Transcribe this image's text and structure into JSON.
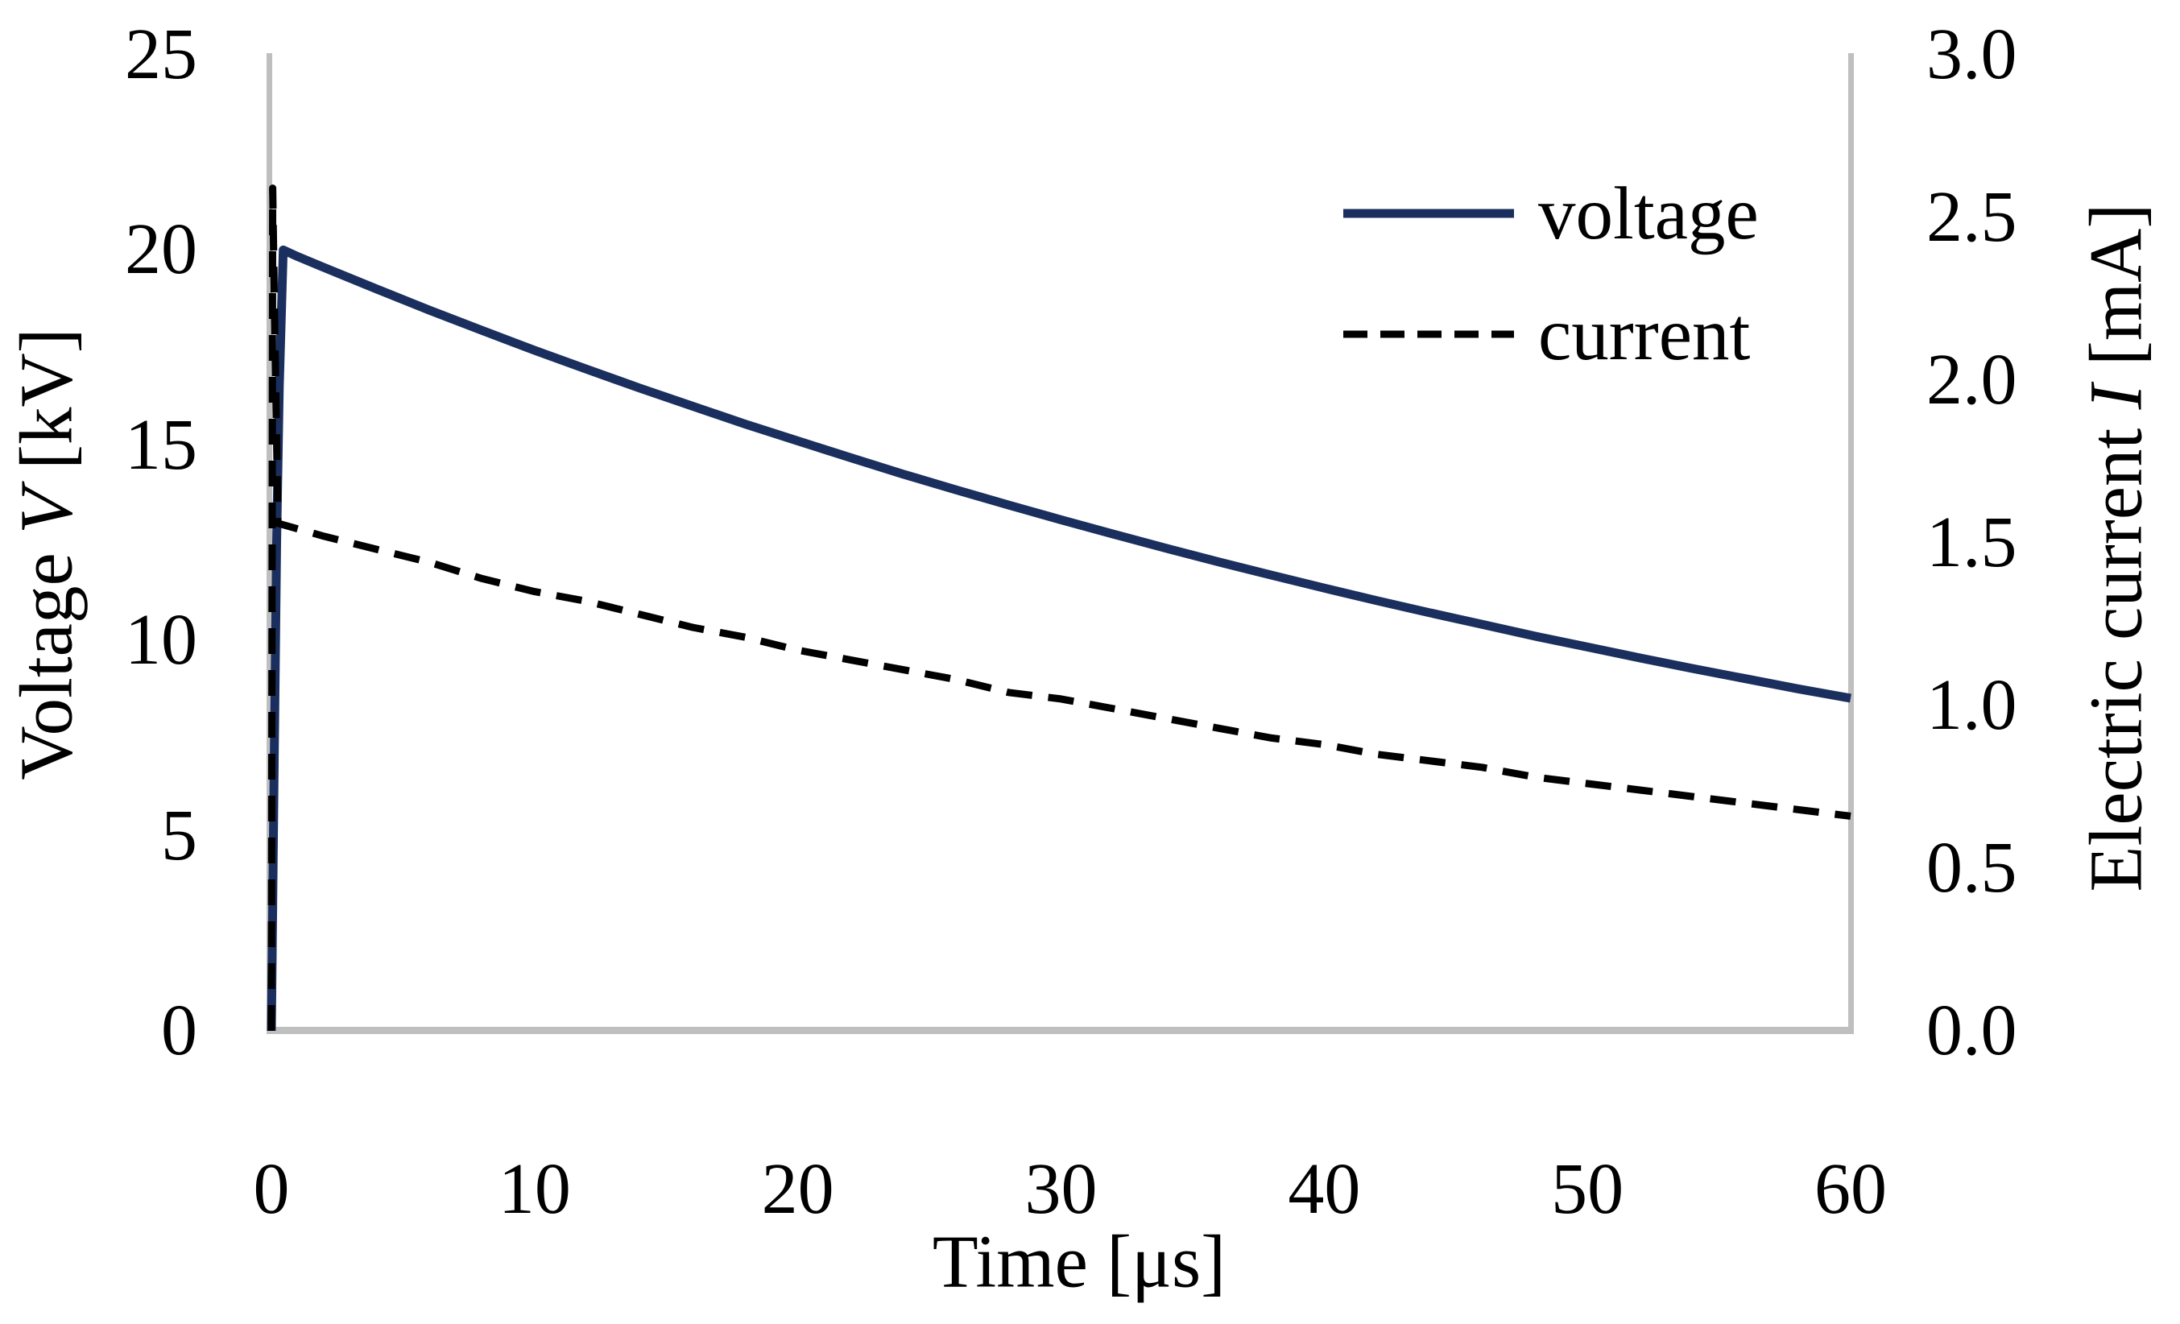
{
  "chart_data": {
    "type": "line",
    "title": "",
    "xlabel": "Time [μs]",
    "ylabel_left": {
      "pre": "Voltage ",
      "var": "V",
      "post": " [kV]"
    },
    "ylabel_right": {
      "pre": "Electric current ",
      "var": "I",
      "post": " [mA]"
    },
    "xlim": [
      0,
      60
    ],
    "ylim_left": [
      0,
      25
    ],
    "ylim_right": [
      0,
      3
    ],
    "x_tick_labels": [
      "0",
      "10",
      "20",
      "30",
      "40",
      "50",
      "60"
    ],
    "y_left_tick_labels": [
      "25",
      "20",
      "15",
      "10",
      "5",
      "0"
    ],
    "y_right_tick_labels": [
      "3.0",
      "2.5",
      "2.0",
      "1.5",
      "1.0",
      "0.5",
      "0.0"
    ],
    "grid": false,
    "legend_position": "top-right-inside",
    "axis_color": "#bfbfbf",
    "series": [
      {
        "name": "voltage",
        "axis": "left",
        "style": "solid",
        "color": "#1b2f5e",
        "units": "kV",
        "points": [
          [
            0,
            0
          ],
          [
            0.1,
            6.5
          ],
          [
            0.2,
            12.5
          ],
          [
            0.3,
            16.5
          ],
          [
            0.45,
            20.0
          ],
          [
            1,
            19.83
          ],
          [
            2,
            19.55
          ],
          [
            4,
            19.0
          ],
          [
            6,
            18.46
          ],
          [
            8,
            17.94
          ],
          [
            10,
            17.43
          ],
          [
            12,
            16.94
          ],
          [
            14,
            16.46
          ],
          [
            16,
            16.0
          ],
          [
            18,
            15.54
          ],
          [
            20,
            15.11
          ],
          [
            22,
            14.68
          ],
          [
            24,
            14.26
          ],
          [
            26,
            13.86
          ],
          [
            28,
            13.47
          ],
          [
            30,
            13.09
          ],
          [
            32,
            12.72
          ],
          [
            34,
            12.36
          ],
          [
            36,
            12.01
          ],
          [
            38,
            11.67
          ],
          [
            40,
            11.34
          ],
          [
            42,
            11.02
          ],
          [
            44,
            10.71
          ],
          [
            46,
            10.41
          ],
          [
            48,
            10.11
          ],
          [
            50,
            9.83
          ],
          [
            52,
            9.55
          ],
          [
            54,
            9.28
          ],
          [
            56,
            9.02
          ],
          [
            58,
            8.76
          ],
          [
            60,
            8.52
          ]
        ]
      },
      {
        "name": "current",
        "axis": "right",
        "style": "dashed",
        "color": "#000000",
        "units": "mA",
        "points": [
          [
            0,
            0
          ],
          [
            0.05,
            2.59
          ],
          [
            0.12,
            2.2
          ],
          [
            0.25,
            1.56
          ],
          [
            2,
            1.52
          ],
          [
            4,
            1.48
          ],
          [
            6,
            1.44
          ],
          [
            8,
            1.39
          ],
          [
            10,
            1.35
          ],
          [
            12,
            1.32
          ],
          [
            14,
            1.28
          ],
          [
            16,
            1.24
          ],
          [
            18,
            1.21
          ],
          [
            20,
            1.17
          ],
          [
            22,
            1.14
          ],
          [
            24,
            1.11
          ],
          [
            26,
            1.08
          ],
          [
            28,
            1.04
          ],
          [
            30,
            1.02
          ],
          [
            32,
            0.99
          ],
          [
            34,
            0.96
          ],
          [
            36,
            0.93
          ],
          [
            38,
            0.9
          ],
          [
            40,
            0.88
          ],
          [
            42,
            0.85
          ],
          [
            44,
            0.83
          ],
          [
            46,
            0.81
          ],
          [
            48,
            0.78
          ],
          [
            50,
            0.76
          ],
          [
            52,
            0.74
          ],
          [
            54,
            0.72
          ],
          [
            56,
            0.7
          ],
          [
            58,
            0.68
          ],
          [
            60,
            0.66
          ]
        ]
      }
    ]
  }
}
